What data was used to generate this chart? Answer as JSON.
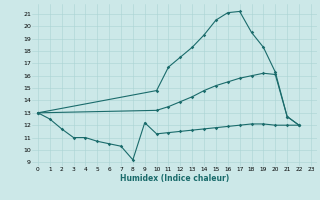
{
  "xlabel": "Humidex (Indice chaleur)",
  "bg_color": "#cce8e8",
  "grid_color": "#aad4d4",
  "line_color": "#1a6b6b",
  "xlim_min": -0.5,
  "xlim_max": 23.5,
  "ylim_min": 8.7,
  "ylim_max": 21.8,
  "yticks": [
    9,
    10,
    11,
    12,
    13,
    14,
    15,
    16,
    17,
    18,
    19,
    20,
    21
  ],
  "xticks": [
    0,
    1,
    2,
    3,
    4,
    5,
    6,
    7,
    8,
    9,
    10,
    11,
    12,
    13,
    14,
    15,
    16,
    17,
    18,
    19,
    20,
    21,
    22,
    23
  ],
  "line1_x": [
    0,
    1,
    2,
    3,
    4,
    5,
    6,
    7,
    8,
    9,
    10,
    11,
    12,
    13,
    14,
    15,
    16,
    17,
    18,
    19,
    20,
    21,
    22
  ],
  "line1_y": [
    13,
    12.5,
    11.7,
    11.0,
    11.0,
    10.7,
    10.5,
    10.3,
    9.2,
    12.2,
    11.3,
    11.4,
    11.5,
    11.6,
    11.7,
    11.8,
    11.9,
    12.0,
    12.1,
    12.1,
    12.0,
    12.0,
    12.0
  ],
  "line2_x": [
    0,
    10,
    11,
    12,
    13,
    14,
    15,
    16,
    17,
    18,
    19,
    20,
    21,
    22
  ],
  "line2_y": [
    13.0,
    13.2,
    13.5,
    13.9,
    14.3,
    14.8,
    15.2,
    15.5,
    15.8,
    16.0,
    16.2,
    16.1,
    12.7,
    12.0
  ],
  "line3_x": [
    0,
    10,
    11,
    12,
    13,
    14,
    15,
    16,
    17,
    18,
    19,
    20,
    21,
    22
  ],
  "line3_y": [
    13.0,
    14.8,
    16.7,
    17.5,
    18.3,
    19.3,
    20.5,
    21.1,
    21.2,
    19.5,
    18.3,
    16.3,
    12.7,
    12.0
  ]
}
